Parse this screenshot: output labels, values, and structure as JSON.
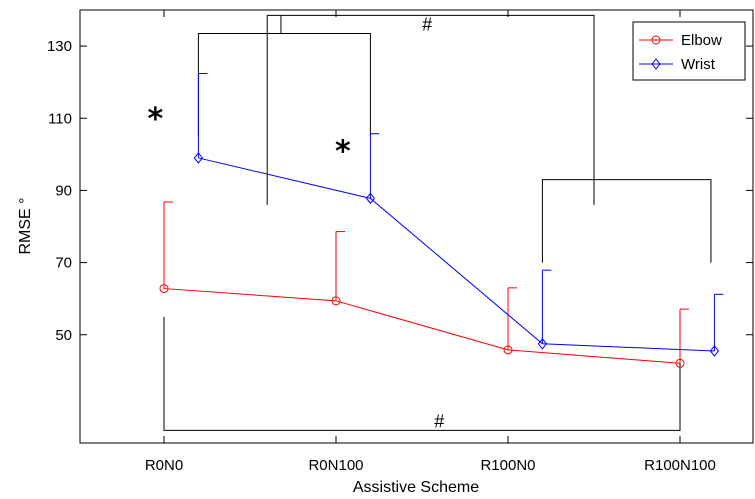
{
  "chart_data": {
    "type": "line",
    "title": "",
    "xlabel": "Assistive Scheme",
    "ylabel": "RMSE °",
    "categories": [
      "R0N0",
      "R0N100",
      "R100N0",
      "R100N100"
    ],
    "ylim": [
      20,
      140
    ],
    "yticks": [
      50,
      70,
      90,
      110,
      130
    ],
    "grid": false,
    "legend_position": "top-right",
    "series": [
      {
        "name": "Elbow",
        "color": "#ff0000",
        "marker": "circle",
        "values": [
          62.8,
          59.4,
          45.8,
          42.1
        ],
        "errors": [
          24.0,
          19.2,
          17.2,
          15.0
        ],
        "x_offset": 0
      },
      {
        "name": "Wrist",
        "color": "#0000ff",
        "marker": "diamond",
        "values": [
          99.0,
          87.8,
          47.5,
          45.5
        ],
        "errors": [
          23.4,
          17.9,
          20.4,
          15.7
        ],
        "x_offset": 0.2
      }
    ],
    "annotations": [
      {
        "text": "*",
        "x": -0.05,
        "y": 112
      },
      {
        "text": "*",
        "x": 1.04,
        "y": 103
      },
      {
        "text": "#",
        "x": 1.53,
        "y": 136
      },
      {
        "text": "#",
        "x": 1.6,
        "y": 26
      }
    ],
    "brackets": [
      {
        "x1": 0.2,
        "x2": 1.2,
        "y": 133.5,
        "tip": 105,
        "mid_y": 136.5
      },
      {
        "x1": 0.6,
        "x2": 2.5,
        "y": 138.5,
        "tip": 86,
        "mid_y": 138.5
      },
      {
        "x1": 2.2,
        "x2": 3.18,
        "y": 93,
        "tip": 70,
        "mid_y": 93
      },
      {
        "x1": 0.0,
        "x2": 3.0,
        "y": 23.5,
        "tip": 55,
        "mid_y": 23.5
      }
    ]
  }
}
